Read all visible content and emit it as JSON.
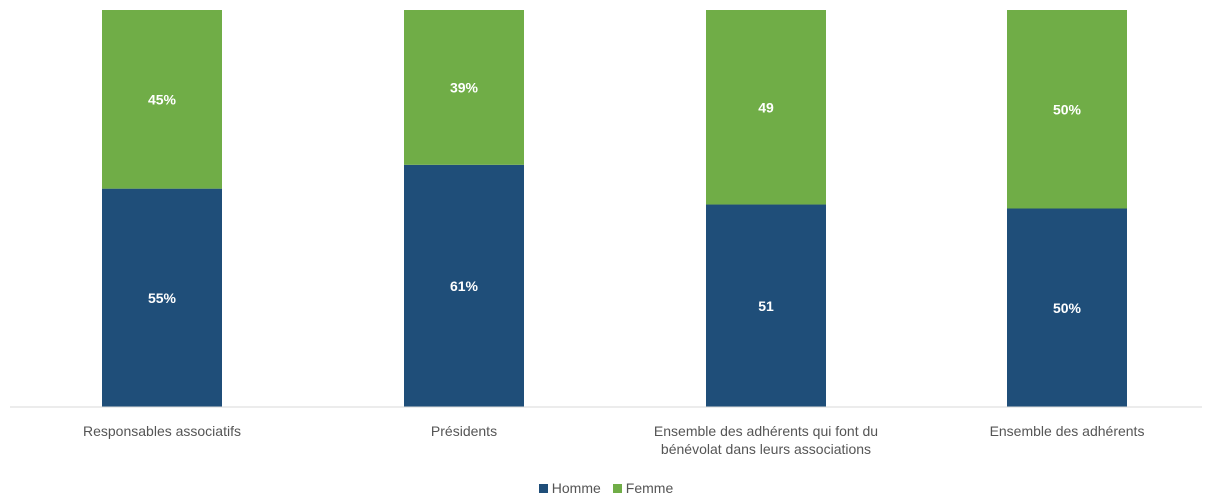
{
  "chart_data": {
    "type": "bar",
    "stacked": true,
    "percent_stacked": true,
    "categories": [
      "Responsables associatifs",
      "Présidents",
      "Ensemble des adhérents qui font du bénévolat dans leurs associations",
      "Ensemble des adhérents"
    ],
    "series": [
      {
        "name": "Homme",
        "color": "#1f4e79",
        "values": [
          55,
          61,
          51,
          50
        ],
        "labels": [
          "55%",
          "61%",
          "51",
          "50%"
        ]
      },
      {
        "name": "Femme",
        "color": "#70ad47",
        "values": [
          45,
          39,
          49,
          50
        ],
        "labels": [
          "45%",
          "39%",
          "49",
          "50%"
        ]
      }
    ],
    "ylim": [
      0,
      100
    ],
    "grid": false,
    "legend_position": "bottom"
  }
}
